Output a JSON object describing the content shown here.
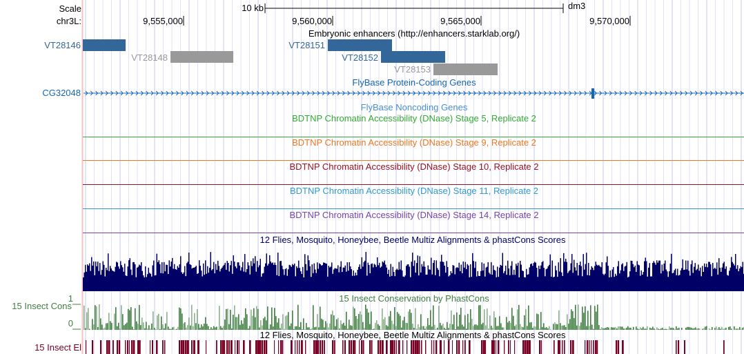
{
  "header": {
    "scale_label": "Scale",
    "chrom_label": "chr3L:",
    "scale_bar": "10 kb",
    "assembly": "dm3",
    "ticks": [
      "9,555,000",
      "9,560,000",
      "9,565,000",
      "9,570,000"
    ]
  },
  "enhancers": {
    "title": "Embryonic enhancers (http://enhancers.starklab.org/)",
    "items": [
      {
        "name": "VT28146",
        "color": "#336699"
      },
      {
        "name": "VT28148",
        "color": "#999999"
      },
      {
        "name": "VT28151",
        "color": "#336699"
      },
      {
        "name": "VT28152",
        "color": "#336699"
      },
      {
        "name": "VT28153",
        "color": "#999999"
      }
    ]
  },
  "genes": {
    "title": "FlyBase Protein-Coding Genes",
    "gene": "CG32048",
    "color": "#1565b5"
  },
  "noncoding": {
    "title": "FlyBase Noncoding Genes"
  },
  "dnase": [
    {
      "title": "BDTNP Chromatin Accessibility (DNase) Stage 5, Replicate 2",
      "color": "#33aa33"
    },
    {
      "title": "BDTNP Chromatin Accessibility (DNase) Stage 9, Replicate 2",
      "color": "#ee7722"
    },
    {
      "title": "BDTNP Chromatin Accessibility (DNase) Stage 10, Replicate 2",
      "color": "#991122"
    },
    {
      "title": "BDTNP Chromatin Accessibility (DNase) Stage 11, Replicate 2",
      "color": "#3399cc"
    },
    {
      "title": "BDTNP Chromatin Accessibility (DNase) Stage 14, Replicate 2",
      "color": "#7744aa"
    }
  ],
  "multiz": {
    "title": "12 Flies, Mosquito, Honeybee, Beetle Multiz Alignments & phastCons Scores",
    "color": "#000066"
  },
  "cons": {
    "title": "15 Insect Conservation by PhastCons",
    "label": "15 Insect Cons",
    "max": "1",
    "min": "0",
    "color": "#3f7f3f"
  },
  "multiz2": {
    "title": "12 Flies, Mosquito, Honeybee, Beetle Multiz Alignments & phastCons Scores"
  },
  "elements": {
    "label": "15 Insect El",
    "color": "#770022"
  }
}
